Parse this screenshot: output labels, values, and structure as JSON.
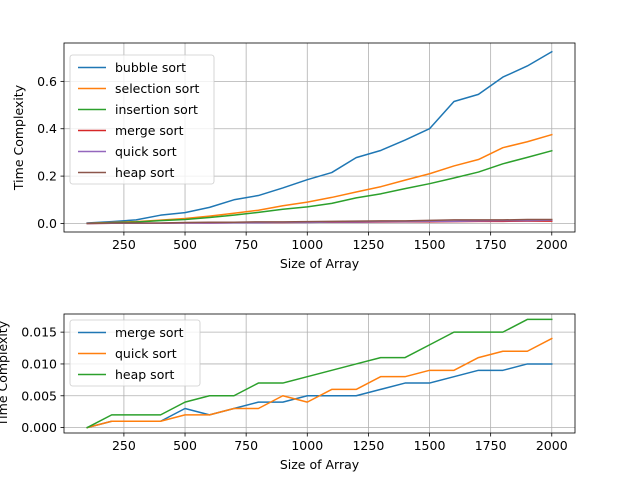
{
  "chart_data": [
    {
      "type": "line",
      "xlabel": "Size of Array",
      "ylabel": "Time Complexity",
      "xlim": [
        5,
        2095
      ],
      "ylim": [
        -0.036,
        0.762
      ],
      "xticks": [
        250,
        500,
        750,
        1000,
        1250,
        1500,
        1750,
        2000
      ],
      "yticks": [
        0.0,
        0.2,
        0.4,
        0.6
      ],
      "ytick_labels": [
        "0.0",
        "0.2",
        "0.4",
        "0.6"
      ],
      "grid": true,
      "legend_position": "top-left",
      "x": [
        100,
        200,
        300,
        400,
        500,
        600,
        700,
        800,
        900,
        1000,
        1100,
        1200,
        1300,
        1400,
        1500,
        1600,
        1700,
        1800,
        1900,
        2000
      ],
      "series": [
        {
          "name": "bubble sort",
          "color": "#1f77b4",
          "values": [
            0.002,
            0.008,
            0.015,
            0.035,
            0.046,
            0.068,
            0.1,
            0.118,
            0.15,
            0.185,
            0.215,
            0.278,
            0.308,
            0.352,
            0.4,
            0.515,
            0.545,
            0.618,
            0.665,
            0.725
          ]
        },
        {
          "name": "selection sort",
          "color": "#ff7f0e",
          "values": [
            0.001,
            0.004,
            0.008,
            0.014,
            0.021,
            0.031,
            0.043,
            0.056,
            0.075,
            0.09,
            0.11,
            0.133,
            0.155,
            0.183,
            0.21,
            0.243,
            0.27,
            0.32,
            0.345,
            0.375
          ]
        },
        {
          "name": "insertion sort",
          "color": "#2ca02c",
          "values": [
            0.001,
            0.003,
            0.006,
            0.012,
            0.017,
            0.025,
            0.035,
            0.047,
            0.06,
            0.07,
            0.085,
            0.108,
            0.125,
            0.147,
            0.168,
            0.192,
            0.217,
            0.252,
            0.279,
            0.307
          ]
        },
        {
          "name": "merge sort",
          "color": "#d62728",
          "values": [
            0.0,
            0.001,
            0.001,
            0.001,
            0.003,
            0.002,
            0.003,
            0.004,
            0.004,
            0.005,
            0.005,
            0.005,
            0.006,
            0.007,
            0.007,
            0.008,
            0.009,
            0.009,
            0.01,
            0.01
          ]
        },
        {
          "name": "quick sort",
          "color": "#9467bd",
          "values": [
            0.0,
            0.001,
            0.001,
            0.001,
            0.002,
            0.002,
            0.003,
            0.003,
            0.005,
            0.004,
            0.006,
            0.006,
            0.008,
            0.008,
            0.009,
            0.009,
            0.011,
            0.012,
            0.012,
            0.014
          ]
        },
        {
          "name": "heap sort",
          "color": "#8c564b",
          "values": [
            0.0,
            0.002,
            0.002,
            0.002,
            0.004,
            0.005,
            0.005,
            0.007,
            0.007,
            0.008,
            0.009,
            0.01,
            0.011,
            0.011,
            0.013,
            0.015,
            0.015,
            0.015,
            0.017,
            0.017
          ]
        }
      ]
    },
    {
      "type": "line",
      "xlabel": "Size of Array",
      "ylabel": "Time Complexity",
      "xlim": [
        5,
        2095
      ],
      "ylim": [
        -0.00085,
        0.01785
      ],
      "xticks": [
        250,
        500,
        750,
        1000,
        1250,
        1500,
        1750,
        2000
      ],
      "yticks": [
        0.0,
        0.005,
        0.01,
        0.015
      ],
      "ytick_labels": [
        "0.000",
        "0.005",
        "0.010",
        "0.015"
      ],
      "grid": true,
      "legend_position": "top-left",
      "x": [
        100,
        200,
        300,
        400,
        500,
        600,
        700,
        800,
        900,
        1000,
        1100,
        1200,
        1300,
        1400,
        1500,
        1600,
        1700,
        1800,
        1900,
        2000
      ],
      "series": [
        {
          "name": "merge sort",
          "color": "#1f77b4",
          "values": [
            0.0,
            0.001,
            0.001,
            0.001,
            0.003,
            0.002,
            0.003,
            0.004,
            0.004,
            0.005,
            0.005,
            0.005,
            0.006,
            0.007,
            0.007,
            0.008,
            0.009,
            0.009,
            0.01,
            0.01
          ]
        },
        {
          "name": "quick sort",
          "color": "#ff7f0e",
          "values": [
            0.0,
            0.001,
            0.001,
            0.001,
            0.002,
            0.002,
            0.003,
            0.003,
            0.005,
            0.004,
            0.006,
            0.006,
            0.008,
            0.008,
            0.009,
            0.009,
            0.011,
            0.012,
            0.012,
            0.014
          ]
        },
        {
          "name": "heap sort",
          "color": "#2ca02c",
          "values": [
            0.0,
            0.002,
            0.002,
            0.002,
            0.004,
            0.005,
            0.005,
            0.007,
            0.007,
            0.008,
            0.009,
            0.01,
            0.011,
            0.011,
            0.013,
            0.015,
            0.015,
            0.015,
            0.017,
            0.017
          ]
        }
      ]
    }
  ]
}
